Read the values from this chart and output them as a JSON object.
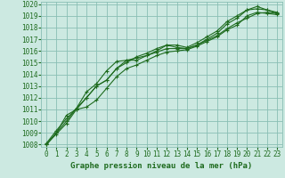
{
  "title": "Graphe pression niveau de la mer (hPa)",
  "bg_color": "#cce9e1",
  "grid_color": "#8abfb4",
  "line_color": "#1e6b1e",
  "xlim": [
    -0.5,
    23.5
  ],
  "ylim": [
    1007.8,
    1020.2
  ],
  "yticks": [
    1008,
    1009,
    1010,
    1011,
    1012,
    1013,
    1014,
    1015,
    1016,
    1017,
    1018,
    1019,
    1020
  ],
  "xticks": [
    0,
    1,
    2,
    3,
    4,
    5,
    6,
    7,
    8,
    9,
    10,
    11,
    12,
    13,
    14,
    15,
    16,
    17,
    18,
    19,
    20,
    21,
    22,
    23
  ],
  "series": [
    [
      1008.0,
      1008.9,
      1009.8,
      1011.0,
      1011.2,
      1011.8,
      1012.8,
      1013.8,
      1014.5,
      1014.8,
      1015.2,
      1015.6,
      1015.9,
      1016.0,
      1016.1,
      1016.4,
      1016.8,
      1017.2,
      1017.8,
      1018.2,
      1019.0,
      1019.3,
      1019.2,
      1019.1
    ],
    [
      1008.0,
      1009.0,
      1010.0,
      1011.1,
      1012.5,
      1013.2,
      1014.3,
      1015.1,
      1015.2,
      1015.4,
      1015.6,
      1015.9,
      1016.2,
      1016.2,
      1016.2,
      1016.5,
      1016.9,
      1017.3,
      1017.9,
      1018.4,
      1018.8,
      1019.2,
      1019.3,
      1019.2
    ],
    [
      1008.1,
      1009.2,
      1010.2,
      1011.1,
      1012.0,
      1013.0,
      1013.5,
      1014.5,
      1015.2,
      1015.2,
      1015.6,
      1016.0,
      1016.5,
      1016.3,
      1016.2,
      1016.5,
      1017.0,
      1017.5,
      1018.3,
      1018.8,
      1019.5,
      1019.6,
      1019.5,
      1019.2
    ],
    [
      1008.0,
      1009.0,
      1010.5,
      1011.0,
      1012.0,
      1013.0,
      1013.5,
      1014.5,
      1015.0,
      1015.5,
      1015.8,
      1016.2,
      1016.5,
      1016.5,
      1016.3,
      1016.7,
      1017.2,
      1017.7,
      1018.5,
      1019.0,
      1019.5,
      1019.8,
      1019.5,
      1019.3
    ]
  ],
  "markers": [
    "+",
    "+",
    "+",
    "+"
  ],
  "linewidths": [
    0.8,
    0.8,
    0.8,
    0.8
  ],
  "markersizes": [
    3.5,
    3.5,
    3.5,
    3.5
  ],
  "tick_fontsize": 5.5,
  "label_fontsize": 6.5
}
